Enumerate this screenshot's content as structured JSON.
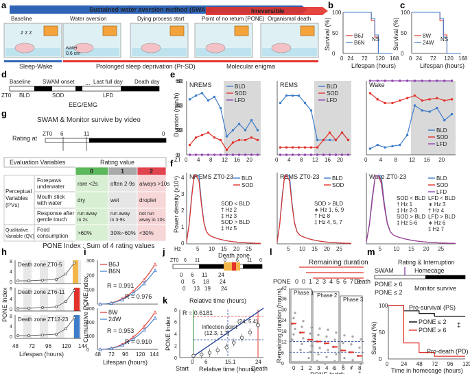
{
  "panel_letters": [
    "a",
    "b",
    "c",
    "d",
    "e",
    "f",
    "g",
    "h",
    "i",
    "j",
    "k",
    "l",
    "m"
  ],
  "panel_a": {
    "title": "Sustained water aversion method (SWAM)",
    "irreversible": "Irreversible",
    "stages": [
      "Baseline",
      "Water aversion",
      "Dying process start",
      "Point of no return (PONE)",
      "Organismal death"
    ],
    "water_label": "water",
    "water_depth": "0.6 cm",
    "sleep_wake": "Sleep-Wake",
    "prsd": "Prolonged sleep deprivation (Pr-SD)",
    "molecular": "Molecular enigma",
    "zzz": "z z z",
    "colors": {
      "blue": "#2f64b7",
      "red": "#e2322b",
      "bg": "#dff0f4"
    }
  },
  "panel_b": {
    "ylabel": "Survival (%)",
    "xlabel": "Lifespan (hours)",
    "yticks": [
      "100",
      "50",
      "0"
    ],
    "xticks": [
      "0",
      "24",
      "72",
      "120",
      "168"
    ],
    "legend": [
      "B6J",
      "B6N"
    ],
    "ns": "NS"
  },
  "panel_c": {
    "ylabel": "Survival (%)",
    "xlabel": "Lifespan (hours)",
    "yticks": [
      "100",
      "50",
      "0"
    ],
    "xticks": [
      "0",
      "24",
      "72",
      "120",
      "168"
    ],
    "legend": [
      "8W",
      "24W"
    ],
    "ns": "NS"
  },
  "panel_d": {
    "top_labels": [
      "Baseline",
      "SWAM onset",
      "Last full day",
      "Death day"
    ],
    "zt0": "ZT0",
    "bot_labels": [
      "BLD",
      "SOD",
      "LFD"
    ],
    "eeg": "EEG/EMG",
    "dots": "..."
  },
  "panel_e": {
    "ylabel": "Duration (min/h)",
    "xlabel": "ZT",
    "xticks": [
      "0",
      "4",
      "8",
      "12",
      "16",
      "20"
    ],
    "yticks": [
      "0",
      "20",
      "40",
      "60"
    ],
    "titles": [
      "NREMS",
      "REMS",
      "Wake"
    ],
    "legend": [
      "BLD",
      "SOD",
      "LFD"
    ]
  },
  "panel_f": {
    "ylabel": "Power density (x10⁶)",
    "xlabel": "Hz",
    "xticks": [
      "5",
      "10",
      "15",
      "20",
      "25"
    ],
    "yticks": [
      "0",
      "1",
      "2",
      "3",
      "4"
    ],
    "titles": [
      "NREMS ZT0-23",
      "REMS ZT0-23",
      "Wake ZT0-23"
    ],
    "ann1": [
      "SOD < BLD",
      "† Hz 2",
      "‡ Hz 3",
      "SOD > BLD",
      "‡ Hz 5"
    ],
    "ann2": [
      "SOD > BLD",
      "∗ Hz 1, 6, 9",
      "† Hz 8",
      "‡ Hz 4, 5, 7"
    ],
    "ann3a": [
      "SOD < BLD",
      "† Hz 1",
      "‡ Hz 2-3",
      "SOD > BLD",
      "‡ Hz 5-6"
    ],
    "ann3b": [
      "LFD < BLD",
      "∗ Hz 3",
      "† Hz 4",
      "LFD > BLD",
      "∗ Hz 6",
      "‡ Hz 7"
    ]
  },
  "panel_g": {
    "title": "SWAM & Monitor survive by video",
    "rating_at": "Rating at",
    "zt_ticks": [
      "ZT0",
      "6",
      "11",
      "0"
    ],
    "header_eval": "Evaluation Variables",
    "header_rating": "Rating value",
    "values": [
      "0",
      "1",
      "2"
    ],
    "group1": "Perceptual Variables (PVs)",
    "group2": "Qualitative Variable (QV)",
    "rows": [
      {
        "var": "Forepaws underwater",
        "c0": "rare <2s",
        "c1": "often 2-9s",
        "c2": "always >10s"
      },
      {
        "var": "Mouth stick with water",
        "c0": "dry",
        "c1": "wet",
        "c2": "droplet"
      },
      {
        "var": "Response after gentle touch",
        "c0": "run away in 2s",
        "c1": "run away in 3-9s",
        "c2": "not run away in 10s"
      },
      {
        "var": "Food consumption",
        "c0": ">60%",
        "c1": "30%~60%",
        "c2": "<30%"
      }
    ],
    "pone_index": "PONE Index : Sum of 4 rating values",
    "colors": {
      "green": "#5cb85c",
      "grey": "#aaaaaa",
      "red": "#e0454f",
      "greenLight": "#d9efd3",
      "greyLight": "#e6e6e6",
      "redLight": "#f7d6d8"
    }
  },
  "panel_h": {
    "ylabel": "PONE Index",
    "xlabel": "Lifespan (hours)",
    "xticks": [
      "48",
      "72",
      "96",
      "120",
      "144"
    ],
    "yticks": [
      "0",
      "4",
      "8"
    ],
    "zones": [
      "Death zone ZT0-5",
      "Death zone ZT6-11",
      "Death zone ZT12-23"
    ]
  },
  "panel_i": {
    "ylabel": "Cumulative PONE index",
    "xlabel": "Lifespan (hours)",
    "xticks": [
      "48",
      "72",
      "96",
      "120",
      "144"
    ],
    "yticks_top": [
      "0",
      "100",
      "200",
      "300"
    ],
    "yticks_bot": [
      "0",
      "100",
      "200",
      "300"
    ],
    "legend_top": [
      "B6J",
      "B6N"
    ],
    "legend_bot": [
      "8W",
      "24W"
    ],
    "r_top": [
      "R = 0.991",
      "R = 0.976"
    ],
    "r_bot": [
      "R = 0.953",
      "R = 0.910"
    ]
  },
  "panel_j": {
    "zt_labels": [
      "ZT0",
      "6",
      "11",
      "0",
      "6",
      "11",
      "0"
    ],
    "death_zone": "Death zone",
    "rel_time": "Relative time (hours)",
    "row1": [
      "0",
      "6",
      "11",
      "24"
    ],
    "row2": [
      "0",
      "5",
      "18",
      "24"
    ],
    "row3": [
      "0",
      "13",
      "19",
      "24"
    ]
  },
  "panel_k": {
    "ylabel": "PONE Index",
    "xlabel": "Relative time (hours)",
    "r": "R = 0.6181",
    "inflection": "Inflection point",
    "inflection_coord": "(12.3, 1.7)",
    "end_coord": "(24, 5.4)",
    "xticks": [
      "0",
      "6",
      "15.1",
      "24"
    ],
    "yticks": [
      "0",
      "2",
      "4",
      "6",
      "8"
    ],
    "start": "Start",
    "death": "Death"
  },
  "panel_l": {
    "remaining": "Remaining duration",
    "pone": "PONE",
    "death": "Death",
    "pone_seq": [
      "0",
      "0",
      "1",
      "2",
      "3",
      "4",
      "5",
      "6",
      "7",
      "8"
    ],
    "ylabel": "Remaining duration (hours)",
    "xlabel": "PONE Index",
    "phases": [
      "Phase 1",
      "Phase 2",
      "Phase 3"
    ],
    "xticks": [
      "0",
      "1",
      "2",
      "3",
      "4",
      "5",
      "6",
      "7",
      "8"
    ],
    "yticks": [
      "0",
      "6",
      "12",
      "18",
      "24",
      "30",
      "36",
      "42"
    ]
  },
  "panel_m": {
    "rating": "Rating & Interruption",
    "swam": "SWAM",
    "homecage": "Homecage",
    "pone_ge6": "PONE ≥ 6",
    "pone_le2": "PONE ≤ 2",
    "monitor": "Monitor survive",
    "ps": "Pro-survival (PS)",
    "pd": "Pro-death (PD)",
    "legend": [
      "PONE ≤ 2",
      "PONE ≥ 6"
    ],
    "sig": "‡",
    "ylabel": "Survival (%)",
    "xlabel": "Time in homecage (hours)",
    "xticks": [
      "0",
      "24",
      "48",
      "72",
      "96",
      "120"
    ],
    "yticks": [
      "0",
      "50",
      "100"
    ]
  },
  "chart_data": [
    {
      "type": "line",
      "id": "b",
      "x": [
        0,
        24,
        72,
        96,
        108,
        120,
        168
      ],
      "series": [
        {
          "name": "B6J",
          "values": [
            100,
            100,
            100,
            80,
            40,
            0,
            0
          ]
        },
        {
          "name": "B6N",
          "values": [
            100,
            100,
            100,
            85,
            45,
            0,
            0
          ]
        }
      ],
      "ylim": [
        0,
        100
      ]
    },
    {
      "type": "line",
      "id": "c",
      "x": [
        0,
        24,
        72,
        96,
        108,
        120,
        168
      ],
      "series": [
        {
          "name": "8W",
          "values": [
            100,
            100,
            100,
            80,
            45,
            0,
            0
          ]
        },
        {
          "name": "24W",
          "values": [
            100,
            100,
            100,
            85,
            40,
            0,
            0
          ]
        }
      ],
      "ylim": [
        0,
        100
      ]
    },
    {
      "type": "line",
      "id": "e1",
      "x": [
        0,
        2,
        4,
        6,
        8,
        10,
        12,
        14,
        16,
        18,
        20,
        22
      ],
      "series": [
        {
          "name": "BLD",
          "values": [
            45,
            48,
            50,
            44,
            47,
            38,
            15,
            20,
            25,
            20,
            28,
            20
          ]
        },
        {
          "name": "SOD",
          "values": [
            8,
            14,
            16,
            18,
            14,
            12,
            4,
            10,
            12,
            12,
            14,
            12
          ]
        },
        {
          "name": "LFD",
          "values": [
            0,
            0,
            0,
            0,
            0,
            0,
            0,
            0,
            0,
            0,
            0,
            0
          ]
        }
      ],
      "ylim": [
        0,
        60
      ]
    },
    {
      "type": "line",
      "id": "e2",
      "x": [
        0,
        2,
        4,
        6,
        8,
        10,
        12,
        14,
        16,
        18,
        20,
        22
      ],
      "series": [
        {
          "name": "BLD",
          "values": [
            7,
            8,
            8,
            8,
            7,
            6,
            2,
            2,
            2,
            2,
            3,
            2
          ]
        },
        {
          "name": "SOD",
          "values": [
            1,
            1,
            1,
            1,
            1,
            1,
            1,
            2,
            3,
            2,
            3,
            2
          ]
        },
        {
          "name": "LFD",
          "values": [
            0,
            0,
            0,
            0,
            0,
            0,
            0,
            0,
            0,
            0,
            0,
            0
          ]
        }
      ],
      "ylim": [
        0,
        10
      ]
    },
    {
      "type": "line",
      "id": "e3",
      "x": [
        0,
        2,
        4,
        6,
        8,
        10,
        12,
        14,
        16,
        18,
        20,
        22
      ],
      "series": [
        {
          "name": "BLD",
          "values": [
            5,
            8,
            6,
            7,
            8,
            16,
            40,
            36,
            35,
            38,
            28,
            33
          ]
        },
        {
          "name": "SOD",
          "values": [
            50,
            45,
            42,
            42,
            44,
            46,
            48,
            44,
            45,
            46,
            44,
            45
          ]
        },
        {
          "name": "LFD",
          "values": [
            60,
            60,
            60,
            60,
            60,
            60,
            60,
            60,
            60,
            60,
            60,
            60
          ]
        }
      ],
      "ylim": [
        0,
        60
      ]
    },
    {
      "type": "line",
      "id": "k",
      "x": [
        0,
        3,
        6,
        9,
        12.3,
        15,
        18,
        21,
        24
      ],
      "series": [
        {
          "values": [
            0.3,
            0.5,
            0.8,
            1.2,
            1.7,
            2.5,
            3.3,
            4.2,
            5.4
          ]
        }
      ],
      "ylim": [
        0,
        8
      ]
    },
    {
      "type": "line",
      "id": "m",
      "x": [
        0,
        24,
        48,
        72,
        96,
        120
      ],
      "series": [
        {
          "name": "PONE ≤ 2",
          "values": [
            100,
            90,
            85,
            80,
            80,
            80
          ]
        },
        {
          "name": "PONE ≥ 6",
          "values": [
            100,
            30,
            12,
            5,
            5,
            5
          ]
        }
      ],
      "ylim": [
        0,
        100
      ]
    }
  ]
}
